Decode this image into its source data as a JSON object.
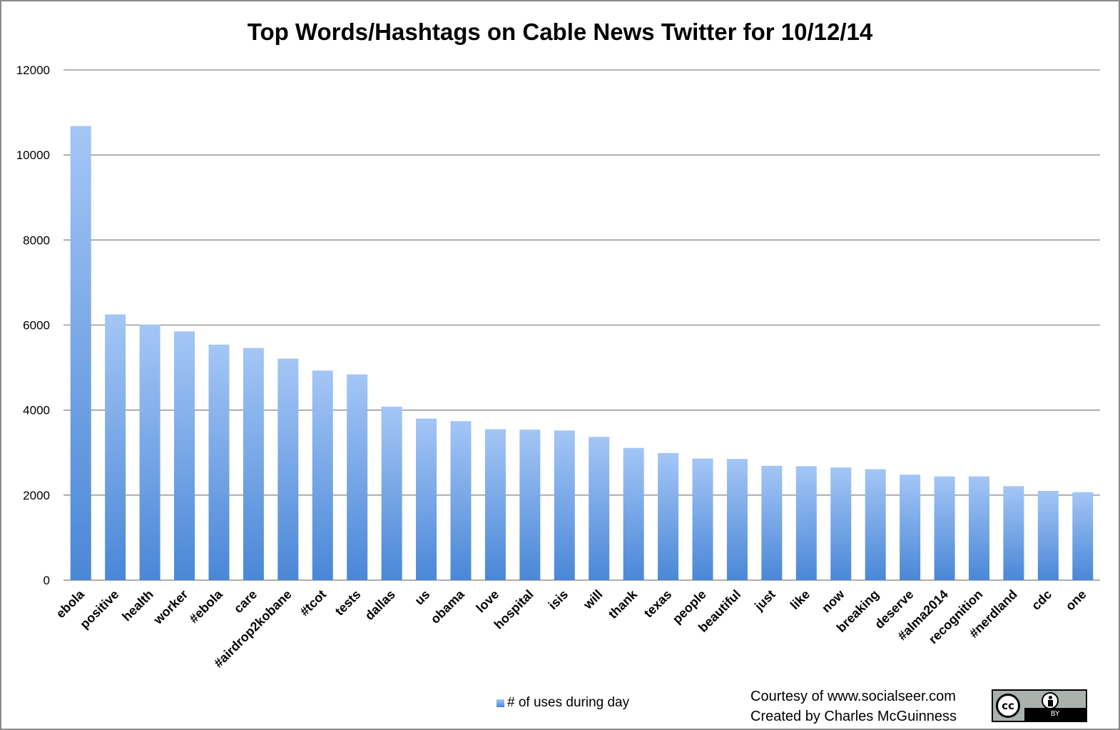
{
  "chart_data": {
    "type": "bar",
    "title": "Top Words/Hashtags on Cable News Twitter for 10/12/14",
    "xlabel": "",
    "ylabel": "",
    "ylim": [
      0,
      12000
    ],
    "yticks": [
      "0",
      "2000",
      "4000",
      "6000",
      "8000",
      "10000",
      "12000"
    ],
    "grid": true,
    "legend_position": "bottom",
    "categories": [
      "ebola",
      "positive",
      "health",
      "worker",
      "#ebola",
      "care",
      "#airdrop2kobane",
      "#tcot",
      "tests",
      "dallas",
      "us",
      "obama",
      "love",
      "hospital",
      "isis",
      "will",
      "thank",
      "texas",
      "people",
      "beautiful",
      "just",
      "like",
      "now",
      "breaking",
      "deserve",
      "#alma2014",
      "recognition",
      "#nerdland",
      "cdc",
      "one"
    ],
    "series": [
      {
        "name": "# of uses during day",
        "values": [
          10680,
          6250,
          6010,
          5850,
          5540,
          5460,
          5210,
          4930,
          4840,
          4080,
          3800,
          3740,
          3550,
          3540,
          3520,
          3370,
          3110,
          2990,
          2860,
          2850,
          2690,
          2680,
          2650,
          2610,
          2480,
          2440,
          2440,
          2210,
          2100,
          2070
        ]
      }
    ],
    "colors": {
      "bar_top": "#a4c6f6",
      "bar_bottom": "#4a87d7",
      "gridline": "#8c8c8c",
      "axis": "#7f7f7f"
    }
  },
  "credits": {
    "line1": "Courtesy of www.socialseer.com",
    "line2": "Created by Charles McGuinness"
  },
  "license_badge": {
    "icon": "cc-by-icon",
    "cc_text": "cc",
    "by_text": "BY"
  }
}
